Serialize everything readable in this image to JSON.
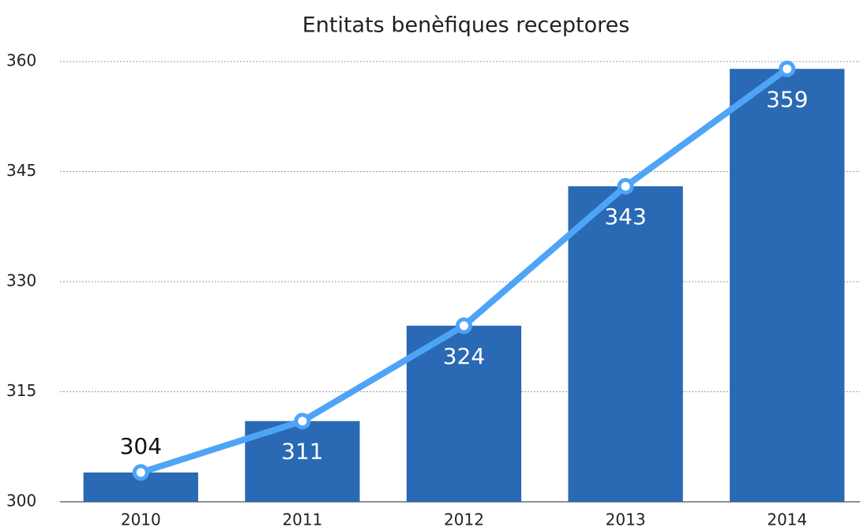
{
  "chart_data": {
    "type": "bar",
    "title": "Entitats benèfiques receptores",
    "categories": [
      "2010",
      "2011",
      "2012",
      "2013",
      "2014"
    ],
    "series": [
      {
        "type": "bar",
        "color": "#2a69b3",
        "values": [
          304,
          311,
          324,
          343,
          359
        ]
      },
      {
        "type": "line",
        "color": "#4ea4f6",
        "values": [
          304,
          311,
          324,
          343,
          359
        ]
      }
    ],
    "ylim": [
      300,
      360
    ],
    "yticks": [
      300,
      315,
      330,
      345,
      360
    ],
    "grid": true
  }
}
